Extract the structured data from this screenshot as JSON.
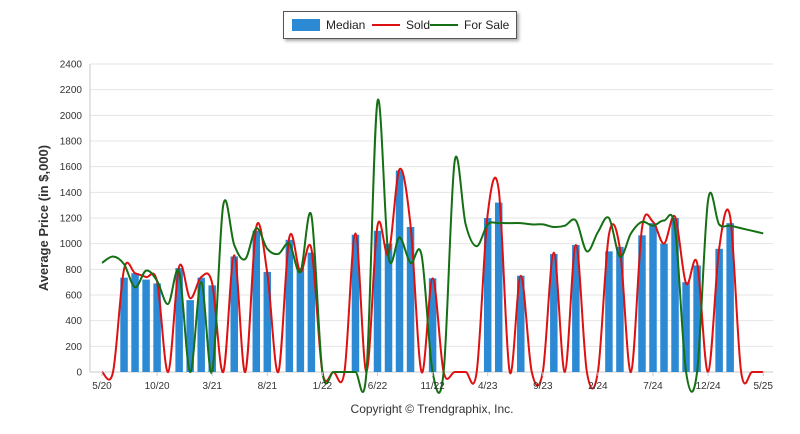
{
  "chart_data": {
    "type": "bar",
    "title": "",
    "ylabel": "Average Price (in $,000)",
    "xlabel": "",
    "ylim": [
      0,
      2400
    ],
    "yticks": [
      0,
      200,
      400,
      600,
      800,
      1000,
      1200,
      1400,
      1600,
      1800,
      2000,
      2200,
      2400
    ],
    "grid": true,
    "legend_position": "top",
    "x": [
      "5/20",
      "6/20",
      "7/20",
      "8/20",
      "9/20",
      "10/20",
      "11/20",
      "12/20",
      "1/21",
      "2/21",
      "3/21",
      "4/21",
      "5/21",
      "6/21",
      "7/21",
      "8/21",
      "9/21",
      "10/21",
      "11/21",
      "12/21",
      "1/22",
      "2/22",
      "3/22",
      "4/22",
      "5/22",
      "6/22",
      "7/22",
      "8/22",
      "9/22",
      "10/22",
      "11/22",
      "12/22",
      "1/23",
      "2/23",
      "3/23",
      "4/23",
      "5/23",
      "6/23",
      "7/23",
      "8/23",
      "9/23",
      "10/23",
      "11/23",
      "12/23",
      "1/24",
      "2/24",
      "3/24",
      "4/24",
      "5/24",
      "6/24",
      "7/24",
      "8/24",
      "9/24",
      "10/24",
      "11/24",
      "12/24",
      "1/25",
      "2/25",
      "3/25",
      "4/25",
      "5/25"
    ],
    "x_tick_labels": [
      "5/20",
      "10/20",
      "3/21",
      "8/21",
      "1/22",
      "6/22",
      "11/22",
      "4/23",
      "9/23",
      "2/24",
      "7/24",
      "12/24",
      "5/25"
    ],
    "series": [
      {
        "name": "Median",
        "kind": "bar",
        "color": "#2c89d3",
        "values": [
          null,
          null,
          735,
          770,
          720,
          690,
          null,
          810,
          560,
          735,
          675,
          null,
          900,
          null,
          1100,
          780,
          null,
          1030,
          810,
          930,
          null,
          null,
          null,
          1070,
          null,
          1100,
          1000,
          1570,
          1130,
          null,
          730,
          null,
          null,
          null,
          null,
          1200,
          1320,
          null,
          750,
          null,
          null,
          920,
          null,
          990,
          null,
          null,
          940,
          975,
          null,
          1065,
          1160,
          1000,
          1200,
          700,
          830,
          null,
          960,
          1160,
          null,
          null,
          null
        ]
      },
      {
        "name": "Sold",
        "kind": "line",
        "color": "#dd1111",
        "values": [
          0,
          0,
          800,
          770,
          740,
          705,
          0,
          820,
          575,
          740,
          690,
          0,
          910,
          0,
          1130,
          770,
          0,
          1050,
          780,
          960,
          0,
          0,
          0,
          1080,
          0,
          1140,
          920,
          1580,
          1140,
          0,
          730,
          0,
          0,
          0,
          0,
          1230,
          1420,
          0,
          750,
          0,
          0,
          930,
          0,
          990,
          0,
          0,
          1070,
          960,
          0,
          1120,
          1170,
          1000,
          1210,
          690,
          850,
          0,
          960,
          1210,
          0,
          0,
          0
        ]
      },
      {
        "name": "For Sale",
        "kind": "line",
        "color": "#156f15",
        "values": [
          850,
          900,
          840,
          660,
          790,
          710,
          530,
          780,
          0,
          700,
          0,
          1300,
          990,
          880,
          1120,
          960,
          920,
          1000,
          780,
          1220,
          0,
          0,
          0,
          0,
          0,
          2110,
          900,
          1050,
          850,
          910,
          0,
          0,
          1640,
          1150,
          980,
          1150,
          1160,
          1160,
          1160,
          1150,
          1150,
          1130,
          1140,
          1180,
          940,
          1090,
          1200,
          900,
          1080,
          1170,
          1140,
          1180,
          1120,
          0,
          0,
          1340,
          1150,
          1140,
          1120,
          1100,
          1080
        ]
      }
    ]
  },
  "copyright": "Copyright © Trendgraphix, Inc."
}
